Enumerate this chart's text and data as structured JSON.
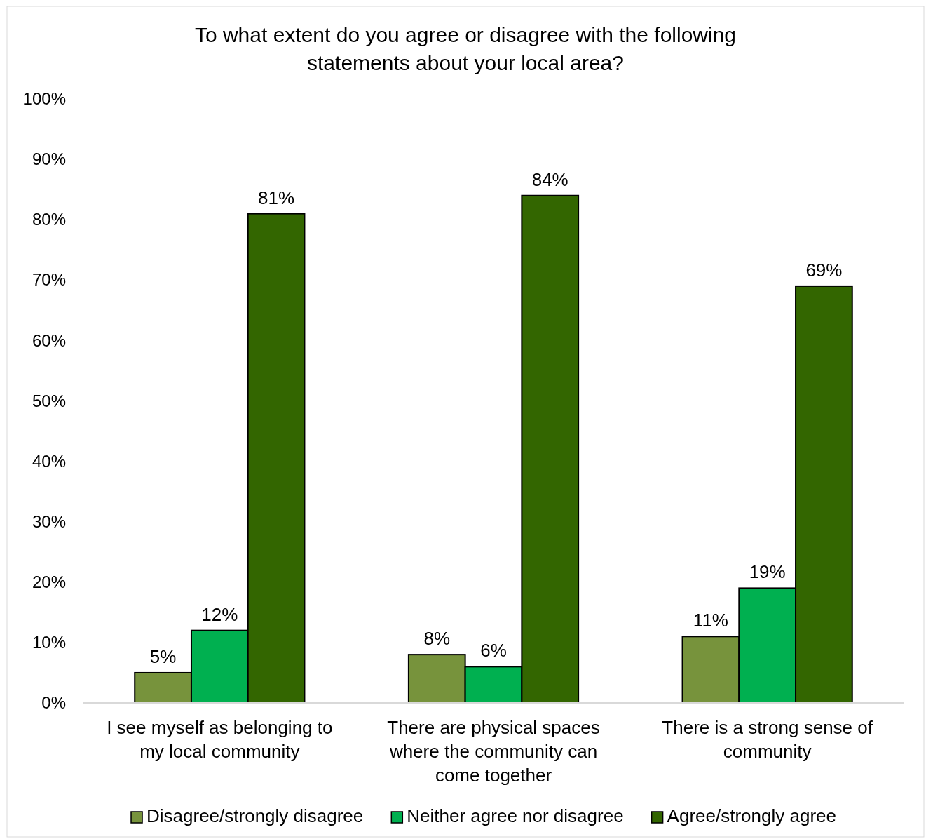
{
  "chart_data": {
    "type": "bar",
    "title": "To what extent do you agree or disagree with the following statements about your local area?",
    "categories": [
      "I see myself as belonging to my local community",
      "There are physical spaces where the community can come together",
      "There is a strong sense of community"
    ],
    "series": [
      {
        "name": "Disagree/strongly disagree",
        "color": "#77933c",
        "values": [
          5,
          8,
          11
        ]
      },
      {
        "name": "Neither agree nor disagree",
        "color": "#00b050",
        "values": [
          12,
          6,
          19
        ]
      },
      {
        "name": "Agree/strongly agree",
        "color": "#336600",
        "values": [
          81,
          84,
          69
        ]
      }
    ],
    "ylim": [
      0,
      100
    ],
    "yticks": [
      {
        "value": 0,
        "label": "0%"
      },
      {
        "value": 10,
        "label": "10%"
      },
      {
        "value": 20,
        "label": "20%"
      },
      {
        "value": 30,
        "label": "30%"
      },
      {
        "value": 40,
        "label": "40%"
      },
      {
        "value": 50,
        "label": "50%"
      },
      {
        "value": 60,
        "label": "60%"
      },
      {
        "value": 70,
        "label": "70%"
      },
      {
        "value": 80,
        "label": "80%"
      },
      {
        "value": 90,
        "label": "90%"
      },
      {
        "value": 100,
        "label": "100%"
      }
    ],
    "value_labels": [
      [
        "5%",
        "8%",
        "11%"
      ],
      [
        "12%",
        "6%",
        "19%"
      ],
      [
        "81%",
        "84%",
        "69%"
      ]
    ],
    "grid": false,
    "legend": "bottom"
  }
}
